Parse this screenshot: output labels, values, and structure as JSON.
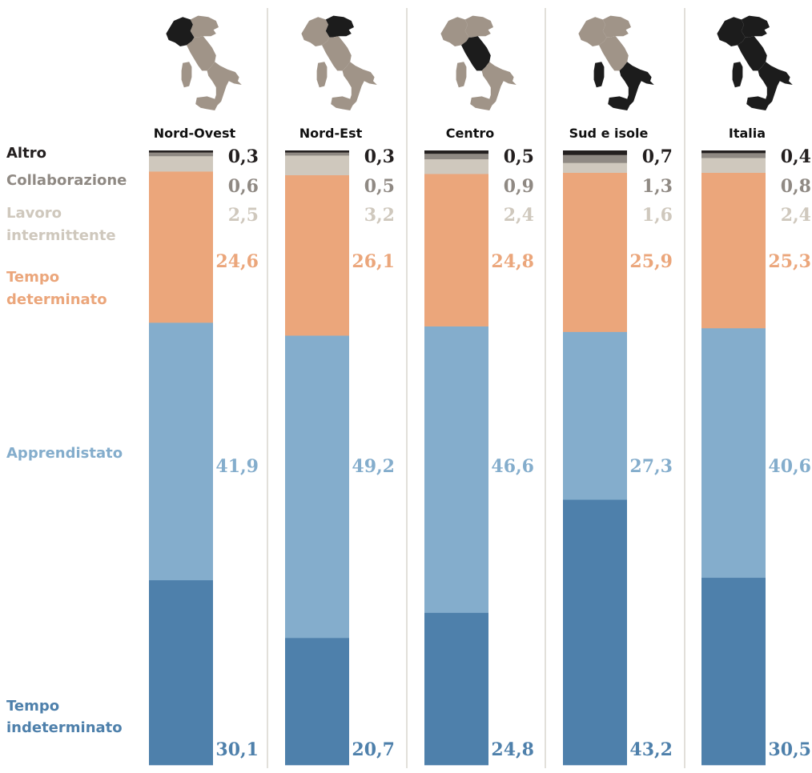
{
  "chart_data": {
    "type": "bar",
    "stacked": true,
    "percent": true,
    "categories": [
      "Nord-Ovest",
      "Nord-Est",
      "Centro",
      "Sud e isole",
      "Italia"
    ],
    "series": [
      {
        "name": "Tempo indeterminato",
        "values": [
          30.1,
          20.7,
          24.8,
          43.2,
          30.5
        ],
        "color": "#4e80ab",
        "legend_lines": [
          "Tempo",
          "indeterminato"
        ]
      },
      {
        "name": "Apprendistato",
        "values": [
          41.9,
          49.2,
          46.6,
          27.3,
          40.6
        ],
        "color": "#84adcc",
        "legend_lines": [
          "Apprendistato"
        ]
      },
      {
        "name": "Tempo determinato",
        "values": [
          24.6,
          26.1,
          24.8,
          25.9,
          25.3
        ],
        "color": "#eba67b",
        "legend_lines": [
          "Tempo",
          "determinato"
        ]
      },
      {
        "name": "Lavoro intermittente",
        "values": [
          2.5,
          3.2,
          2.4,
          1.6,
          2.4
        ],
        "color": "#cfc8bd",
        "legend_lines": [
          "Lavoro",
          "intermittente"
        ]
      },
      {
        "name": "Collaborazione",
        "values": [
          0.6,
          0.5,
          0.9,
          1.3,
          0.8
        ],
        "color": "#8f8983",
        "legend_lines": [
          "Collaborazione"
        ]
      },
      {
        "name": "Altro",
        "values": [
          0.3,
          0.3,
          0.5,
          0.7,
          0.4
        ],
        "color": "#231f1f",
        "legend_lines": [
          "Altro"
        ]
      }
    ],
    "value_label_colors": [
      "#4e80ab",
      "#84adcc",
      "#eba67b",
      "#cfc8bd",
      "#8f8983",
      "#231f1f"
    ],
    "map_icons": [
      {
        "category": "Nord-Ovest",
        "highlight": "nord-ovest"
      },
      {
        "category": "Nord-Est",
        "highlight": "nord-est"
      },
      {
        "category": "Centro",
        "highlight": "centro"
      },
      {
        "category": "Sud e isole",
        "highlight": "sud-e-isole"
      },
      {
        "category": "Italia",
        "highlight": "all"
      }
    ],
    "map_colors": {
      "highlight": "#1c1c1c",
      "base": "#a09488"
    },
    "ylim": [
      0,
      100
    ]
  }
}
